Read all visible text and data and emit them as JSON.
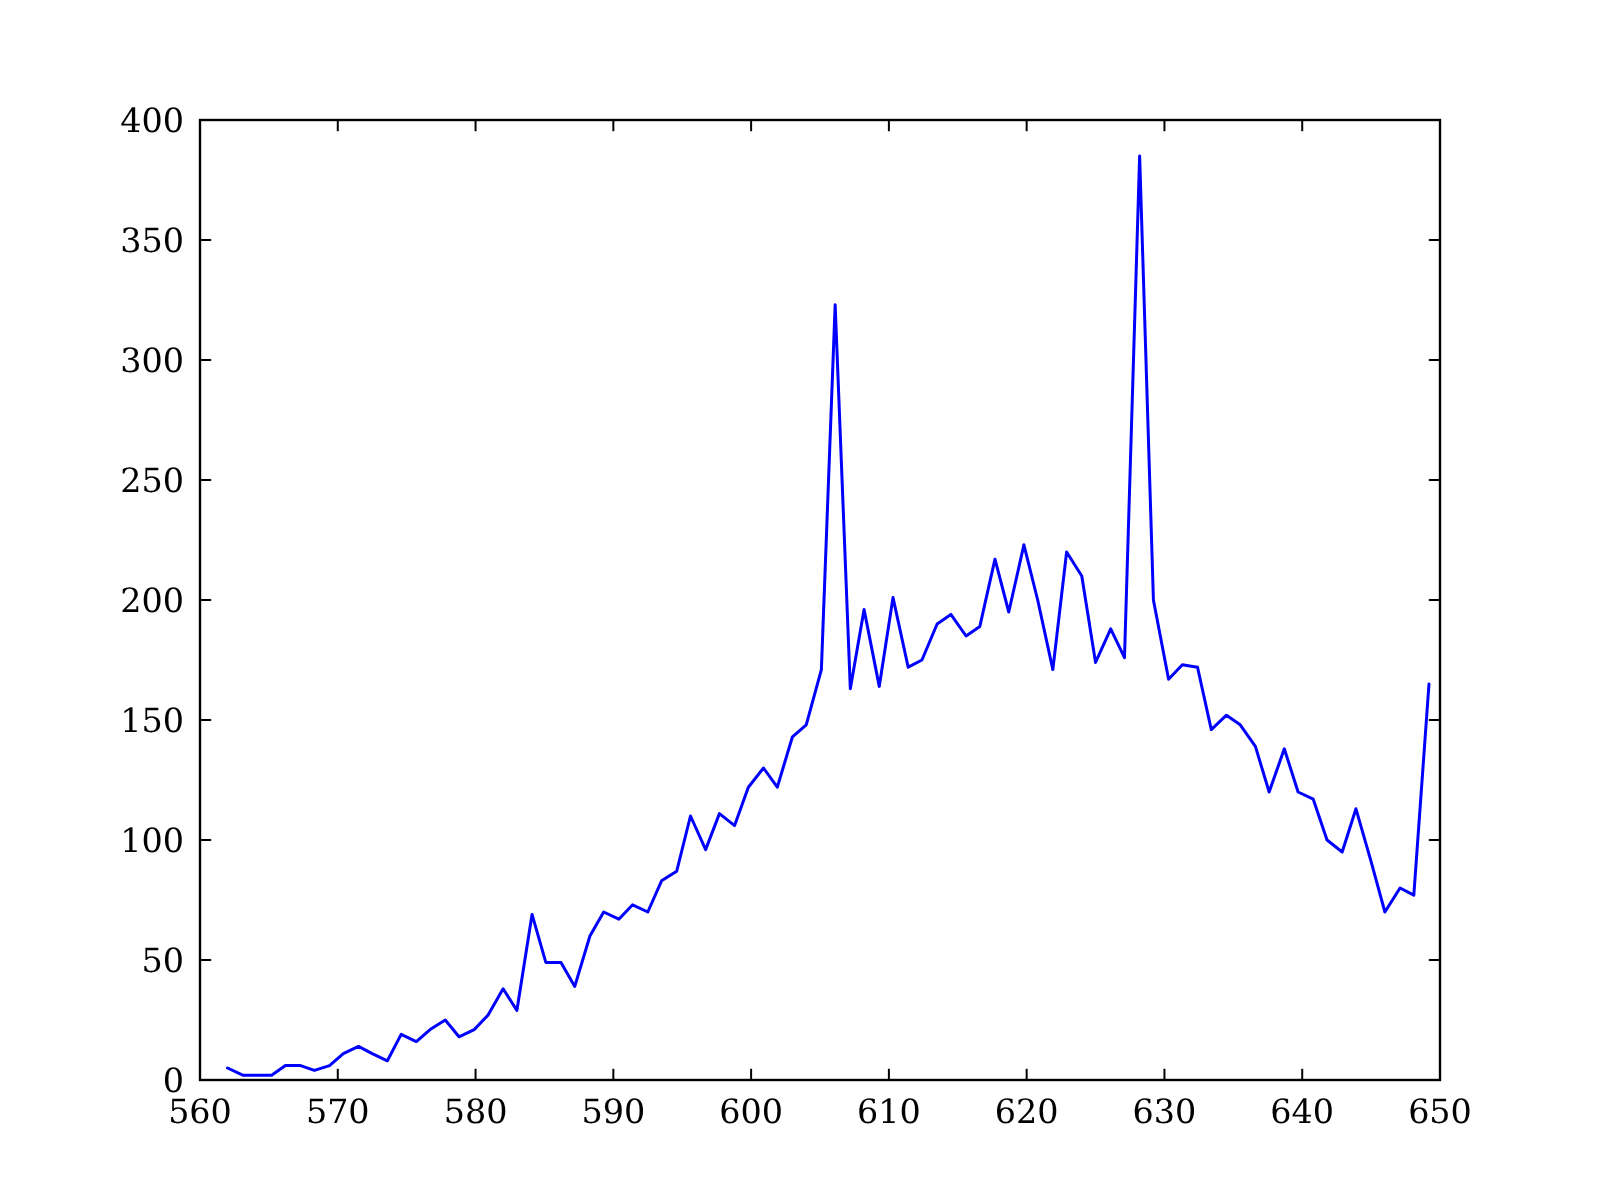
{
  "chart_data": {
    "type": "line",
    "x": [
      562.0,
      563.1,
      564.1,
      565.2,
      566.2,
      567.3,
      568.3,
      569.4,
      570.4,
      571.5,
      572.5,
      573.6,
      574.6,
      575.7,
      576.7,
      577.8,
      578.8,
      579.9,
      580.9,
      582.0,
      583.0,
      584.1,
      585.1,
      586.2,
      587.2,
      588.3,
      589.3,
      590.4,
      591.4,
      592.5,
      593.5,
      594.6,
      595.6,
      596.7,
      597.7,
      598.8,
      599.8,
      600.9,
      601.9,
      603.0,
      604.0,
      605.1,
      606.1,
      607.2,
      608.2,
      609.3,
      610.3,
      611.4,
      612.4,
      613.5,
      614.5,
      615.6,
      616.6,
      617.7,
      618.7,
      619.8,
      620.8,
      621.9,
      622.9,
      624.0,
      625.0,
      626.1,
      627.1,
      628.2,
      629.2,
      630.3,
      631.3,
      632.4,
      633.4,
      634.5,
      635.5,
      636.6,
      637.6,
      638.7,
      639.7,
      640.8,
      641.8,
      642.9,
      643.9,
      645.0,
      646.0,
      647.1,
      648.1,
      649.2
    ],
    "series": [
      {
        "color": "#0000ff",
        "values": [
          5,
          2,
          2,
          2,
          6,
          6,
          4,
          6,
          11,
          14,
          11,
          8,
          19,
          16,
          21,
          25,
          18,
          21,
          27,
          38,
          29,
          69,
          49,
          49,
          39,
          60,
          70,
          67,
          73,
          70,
          83,
          87,
          110,
          96,
          111,
          106,
          122,
          130,
          122,
          143,
          148,
          171,
          323,
          163,
          196,
          164,
          201,
          172,
          175,
          190,
          194,
          185,
          189,
          217,
          195,
          223,
          200,
          171,
          220,
          210,
          174,
          188,
          176,
          385,
          200,
          167,
          173,
          172,
          146,
          152,
          148,
          139,
          120,
          138,
          120,
          117,
          100,
          95,
          113,
          91,
          70,
          80,
          77,
          165
        ]
      }
    ],
    "xlim": [
      560,
      650
    ],
    "ylim": [
      0,
      400
    ],
    "xticks": [
      560,
      570,
      580,
      590,
      600,
      610,
      620,
      630,
      640,
      650
    ],
    "yticks": [
      0,
      50,
      100,
      150,
      200,
      250,
      300,
      350,
      400
    ]
  }
}
